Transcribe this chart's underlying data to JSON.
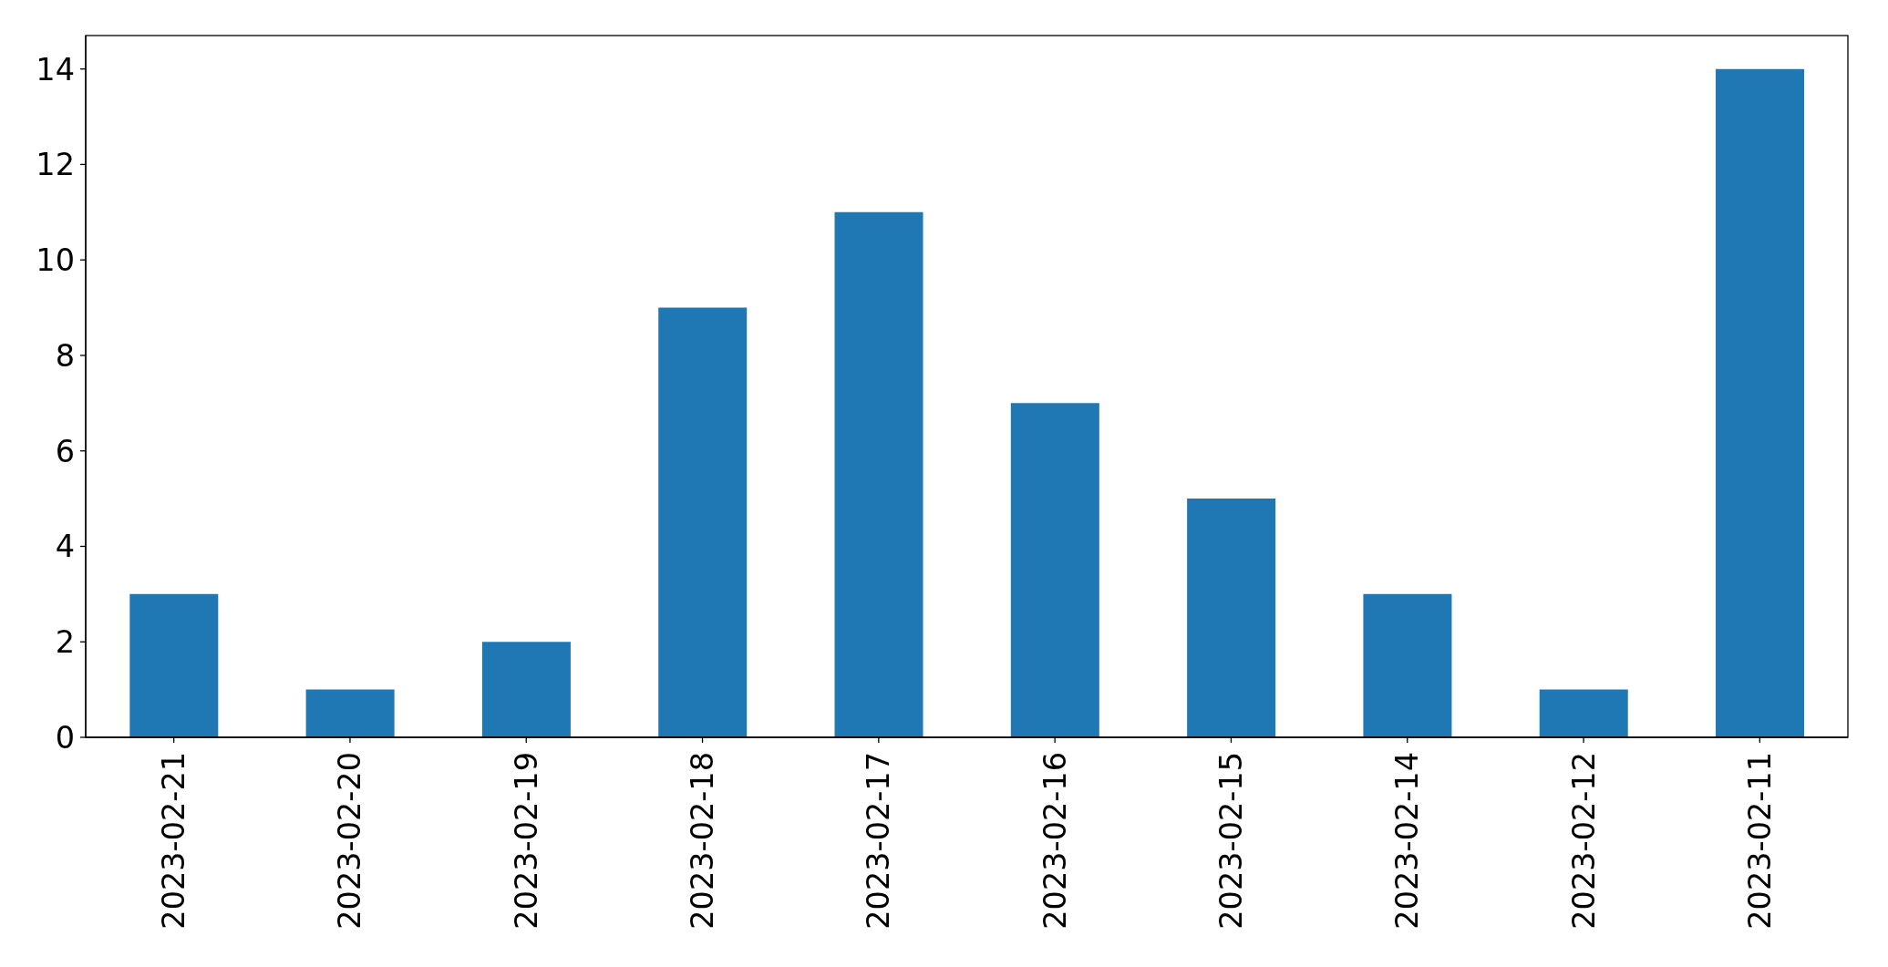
{
  "chart_data": {
    "type": "bar",
    "categories": [
      "2023-02-21",
      "2023-02-20",
      "2023-02-19",
      "2023-02-18",
      "2023-02-17",
      "2023-02-16",
      "2023-02-15",
      "2023-02-14",
      "2023-02-12",
      "2023-02-11"
    ],
    "values": [
      3,
      1,
      2,
      9,
      11,
      7,
      5,
      3,
      1,
      14
    ],
    "color": "#1f77b4",
    "ylim": [
      0,
      14.7
    ],
    "yticks": [
      0,
      2,
      4,
      6,
      8,
      10,
      12,
      14
    ]
  }
}
